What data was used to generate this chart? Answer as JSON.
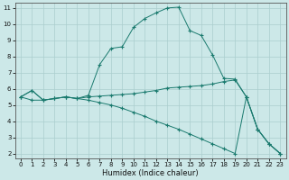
{
  "xlabel": "Humidex (Indice chaleur)",
  "x": [
    0,
    1,
    2,
    3,
    4,
    5,
    6,
    7,
    8,
    9,
    10,
    11,
    12,
    13,
    14,
    15,
    16,
    17,
    18,
    19,
    20,
    21,
    22,
    23
  ],
  "line1": [
    5.5,
    5.9,
    5.3,
    5.4,
    5.5,
    5.4,
    5.6,
    7.5,
    8.5,
    8.6,
    9.8,
    10.35,
    10.7,
    11.0,
    11.05,
    9.6,
    9.3,
    8.1,
    6.65,
    6.6,
    5.5,
    3.5,
    2.6,
    2.0
  ],
  "line2": [
    5.5,
    5.9,
    5.3,
    5.4,
    5.5,
    5.4,
    5.5,
    5.55,
    5.6,
    5.65,
    5.7,
    5.8,
    5.9,
    6.05,
    6.1,
    6.15,
    6.2,
    6.3,
    6.45,
    6.55,
    5.5,
    3.5,
    2.6,
    2.0
  ],
  "line3": [
    5.5,
    5.3,
    5.3,
    5.4,
    5.5,
    5.4,
    5.3,
    5.15,
    5.0,
    4.8,
    4.55,
    4.3,
    4.0,
    3.75,
    3.5,
    3.2,
    2.9,
    2.6,
    2.3,
    2.0,
    5.5,
    3.5,
    2.6,
    2.0
  ],
  "line_color": "#1a7a6e",
  "bg_color": "#cce8e8",
  "grid_color": "#aacece",
  "ylim_min": 1.7,
  "ylim_max": 11.3,
  "xlim_min": -0.5,
  "xlim_max": 23.5,
  "yticks": [
    2,
    3,
    4,
    5,
    6,
    7,
    8,
    9,
    10,
    11
  ],
  "xticks": [
    0,
    1,
    2,
    3,
    4,
    5,
    6,
    7,
    8,
    9,
    10,
    11,
    12,
    13,
    14,
    15,
    16,
    17,
    18,
    19,
    20,
    21,
    22,
    23
  ],
  "tick_fontsize": 5,
  "xlabel_fontsize": 6
}
